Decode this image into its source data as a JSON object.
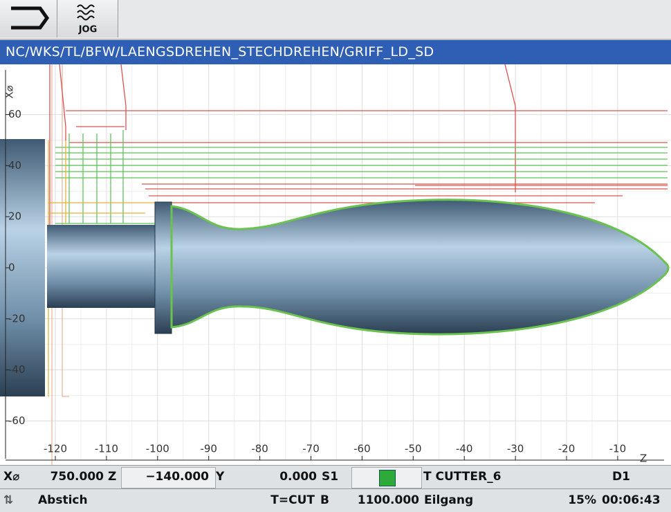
{
  "header": {
    "mode": "JOG"
  },
  "path": "NC/WKS/TL/BFW/LAENGSDREHEN_STECHDREHEN/GRIFF_LD_SD",
  "plot": {
    "x_axis_label": "Z",
    "y_axis_label": "X⌀",
    "xticks": [
      -120,
      -110,
      -100,
      -90,
      -80,
      -70,
      -60,
      -50,
      -40,
      -30,
      -20,
      -10
    ],
    "yticks": [
      60,
      40,
      20,
      0,
      -20,
      -40,
      -60
    ]
  },
  "status": {
    "row1": {
      "x_label": "X⌀",
      "x_value": "750.000",
      "z_label": "Z",
      "z_value": "−140.000",
      "y_label": "Y",
      "y_value": "0.000",
      "spindle": "S1",
      "tool": "T CUTTER_6",
      "offset": "D1"
    },
    "row2": {
      "block": "Abstich",
      "tool_type": "T=CUT",
      "b_label": "B",
      "feed": "1100.000",
      "feed_mode": "Eilgang",
      "override": "15%",
      "time": "00:06:43"
    }
  }
}
